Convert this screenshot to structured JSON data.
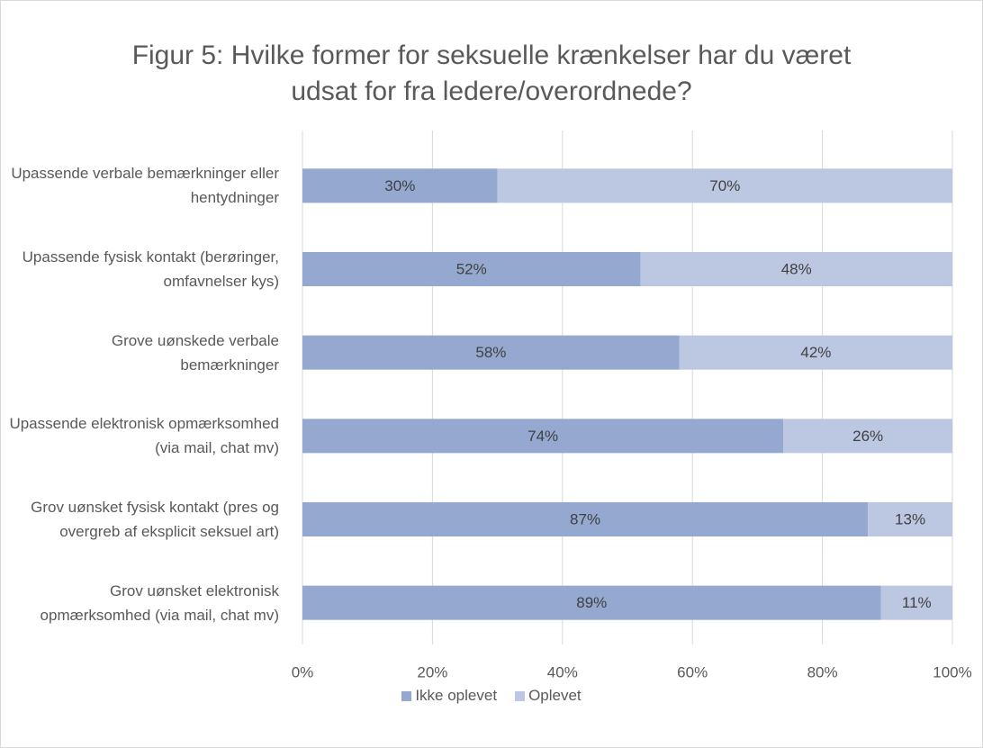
{
  "chart_data": {
    "type": "stacked_barh",
    "title": "Figur 5: Hvilke former for seksuelle krænkelser har du været udsat for fra ledere/overordnede?",
    "categories": [
      "Upassende verbale bemærkninger eller hentydninger",
      "Upassende fysisk kontakt (berøringer, omfavnelser kys)",
      "Grove uønskede verbale bemærkninger",
      "Upassende elektronisk opmærksomhed (via mail, chat mv)",
      "Grov uønsket fysisk kontakt (pres og overgreb af eksplicit seksuel art)",
      "Grov uønsket elektronisk opmærksomhed (via mail, chat mv)"
    ],
    "series": [
      {
        "name": "Ikke oplevet",
        "color": "#94a8d0",
        "values": [
          30,
          52,
          58,
          74,
          87,
          89
        ],
        "value_labels": [
          "30%",
          "52%",
          "58%",
          "74%",
          "87%",
          "89%"
        ]
      },
      {
        "name": "Oplevet",
        "color": "#bcc8e2",
        "values": [
          70,
          48,
          42,
          26,
          13,
          11
        ],
        "value_labels": [
          "70%",
          "48%",
          "42%",
          "26%",
          "13%",
          "11%"
        ]
      }
    ],
    "xlim": [
      0,
      100
    ],
    "xticks": [
      {
        "value": 0,
        "label": "0%"
      },
      {
        "value": 20,
        "label": "20%"
      },
      {
        "value": 40,
        "label": "40%"
      },
      {
        "value": 60,
        "label": "60%"
      },
      {
        "value": 80,
        "label": "80%"
      },
      {
        "value": 100,
        "label": "100%"
      }
    ],
    "grid": true,
    "legend": "bottom"
  }
}
